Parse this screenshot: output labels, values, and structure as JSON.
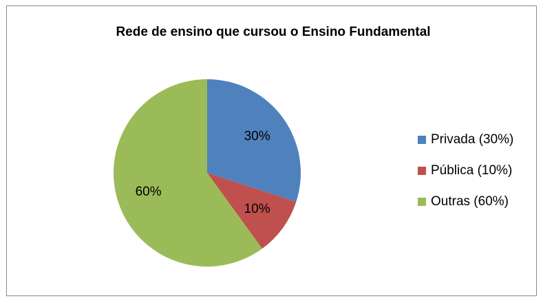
{
  "chart_data": {
    "type": "pie",
    "title": "Rede de ensino que cursou o Ensino Fundamental",
    "categories": [
      "Privada (30%)",
      "Pública (10%)",
      "Outras (60%)"
    ],
    "values": [
      30,
      10,
      60
    ],
    "value_labels": [
      "30%",
      "10%",
      "60%"
    ],
    "colors": [
      "#4f81bd",
      "#c0504d",
      "#9bbb59"
    ],
    "legend": "right"
  }
}
